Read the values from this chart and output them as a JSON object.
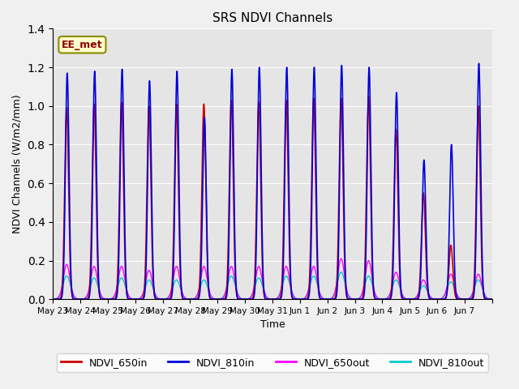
{
  "title": "SRS NDVI Channels",
  "xlabel": "Time",
  "ylabel": "NDVI Channels (W/m2/mm)",
  "ylim": [
    0.0,
    1.4
  ],
  "annotation": "EE_met",
  "tick_labels": [
    "May 23",
    "May 24",
    "May 25",
    "May 26",
    "May 27",
    "May 28",
    "May 29",
    "May 30",
    "May 31",
    "Jun 1",
    "Jun 2",
    "Jun 3",
    "Jun 4",
    "Jun 5",
    "Jun 6",
    "Jun 7"
  ],
  "series": {
    "NDVI_650in": {
      "color": "#cc0000",
      "lw": 1.2
    },
    "NDVI_810in": {
      "color": "#0000dd",
      "lw": 1.2
    },
    "NDVI_650out": {
      "color": "#ff00ff",
      "lw": 1.0
    },
    "NDVI_810out": {
      "color": "#00cccc",
      "lw": 1.0
    }
  },
  "n_days": 16,
  "peaks_650in": [
    0.99,
    1.01,
    1.02,
    1.0,
    1.01,
    1.01,
    1.03,
    1.02,
    1.03,
    1.04,
    1.04,
    1.05,
    0.88,
    0.55,
    0.28,
    1.0
  ],
  "peaks_810in": [
    1.17,
    1.18,
    1.19,
    1.13,
    1.18,
    0.94,
    1.19,
    1.2,
    1.2,
    1.2,
    1.21,
    1.2,
    1.07,
    0.72,
    0.8,
    1.22
  ],
  "peaks_650out": [
    0.18,
    0.17,
    0.17,
    0.15,
    0.17,
    0.17,
    0.17,
    0.17,
    0.17,
    0.17,
    0.21,
    0.2,
    0.14,
    0.1,
    0.13,
    0.13
  ],
  "peaks_810out": [
    0.12,
    0.11,
    0.11,
    0.1,
    0.1,
    0.1,
    0.12,
    0.11,
    0.12,
    0.12,
    0.14,
    0.12,
    0.1,
    0.07,
    0.09,
    0.1
  ],
  "background_color": "#e5e5e5",
  "grid_color": "#ffffff",
  "fig_color": "#f0f0f0"
}
